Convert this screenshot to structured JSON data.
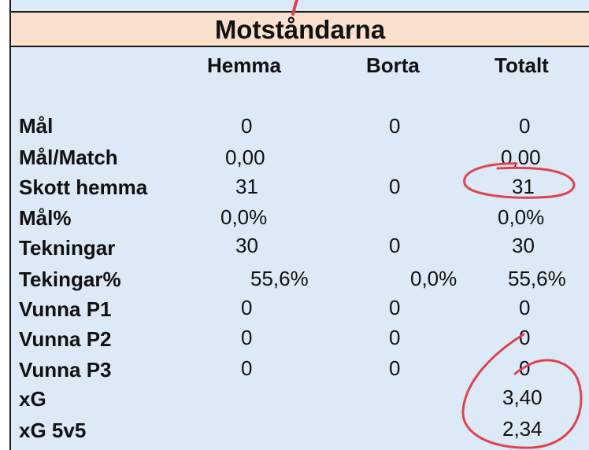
{
  "title": "Motståndarna",
  "columns": [
    "Hemma",
    "Borta",
    "Totalt"
  ],
  "rows": [
    {
      "label": "Mål",
      "hemma": "0",
      "borta": "0",
      "totalt": "0"
    },
    {
      "label": "Mål/Match",
      "hemma": "0,00",
      "borta": "",
      "totalt": "0,00"
    },
    {
      "label": "Skott hemma",
      "hemma": "31",
      "borta": "0",
      "totalt": "31"
    },
    {
      "label": "Mål%",
      "hemma": "0,0%",
      "borta": "",
      "totalt": "0,0%"
    },
    {
      "label": "Tekningar",
      "hemma": "30",
      "borta": "0",
      "totalt": "30"
    },
    {
      "label": "Tekingar%",
      "hemma": "55,6%",
      "borta": "0,0%",
      "totalt": "55,6%"
    },
    {
      "label": "Vunna P1",
      "hemma": "0",
      "borta": "0",
      "totalt": "0"
    },
    {
      "label": "Vunna P2",
      "hemma": "0",
      "borta": "0",
      "totalt": "0"
    },
    {
      "label": "Vunna P3",
      "hemma": "0",
      "borta": "0",
      "totalt": "0"
    },
    {
      "label": "xG",
      "hemma": "",
      "borta": "",
      "totalt": "3,40"
    },
    {
      "label": "xG 5v5",
      "hemma": "",
      "borta": "",
      "totalt": "2,34"
    }
  ],
  "annotation_color": "#e0434f"
}
